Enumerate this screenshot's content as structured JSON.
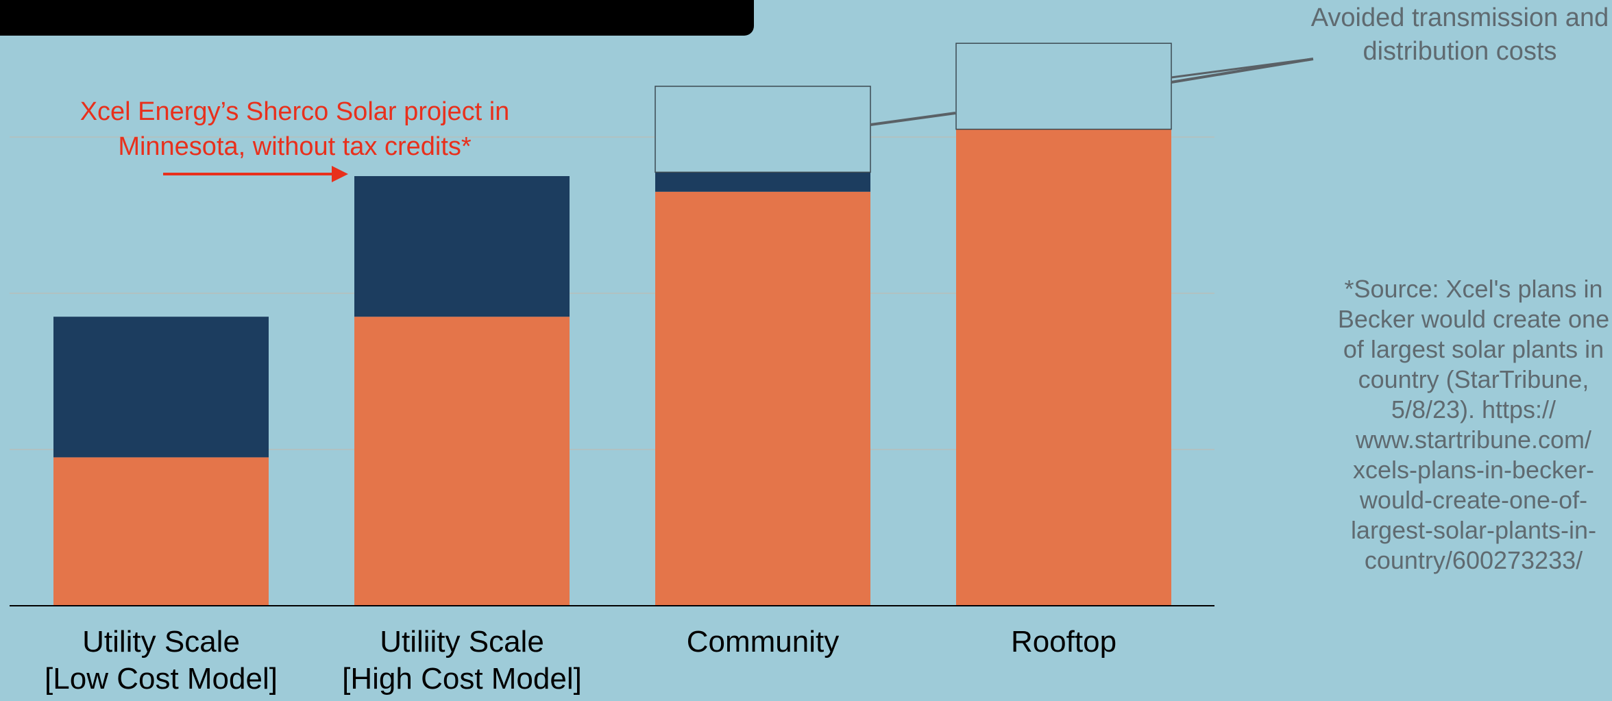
{
  "chart_data": {
    "type": "bar",
    "stacked": true,
    "categories": [
      "Utility Scale\n[Low Cost Model]",
      "Utiliity Scale\n[High Cost Model]",
      "Community",
      "Rooftop"
    ],
    "series": [
      {
        "values": [
          19,
          37,
          53,
          61
        ],
        "color": "#e4754a"
      },
      {
        "values": [
          18,
          18,
          2.5,
          0
        ],
        "color": "#1c3d5f"
      },
      {
        "name": "Avoided transmission and distribution costs",
        "values": [
          0,
          0,
          11,
          11
        ],
        "color": "#9ecbd8",
        "outlined": true
      }
    ],
    "ylim": [
      0,
      75
    ],
    "gridlines": [
      20,
      40,
      60
    ],
    "grid": true,
    "legend": "none",
    "annotations": [
      {
        "text": "Xcel Energy’s Sherco Solar project in Minnesota, without tax credits*",
        "color": "#e8301c",
        "points_to": "Utiliity Scale\n[High Cost Model]"
      },
      {
        "text": "Avoided transmission and distribution costs",
        "color": "#5f6a70",
        "points_to": [
          "Community",
          "Rooftop"
        ]
      }
    ],
    "source_note": "*Source: Xcel's plans in\nBecker would create one\nof largest solar plants in\ncountry (StarTribune,\n5/8/23). https://\nwww.startribune.com/\nxcels-plans-in-becker-\nwould-create-one-of-\nlargest-solar-plants-in-\ncountry/600273233/"
  }
}
